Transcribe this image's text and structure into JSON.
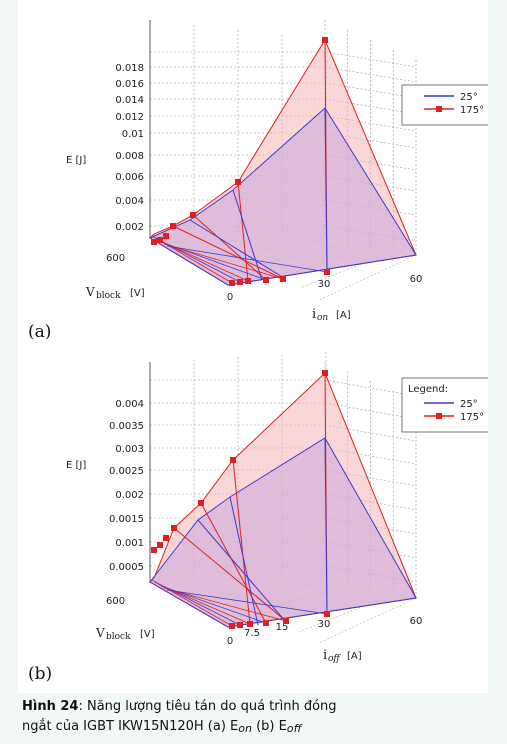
{
  "chart_data": [
    {
      "type": "surface3d",
      "panel_label": "(a)",
      "zlabel": "E [J]",
      "z_ticks": [
        "0.002",
        "0.004",
        "0.006",
        "0.008",
        "0.01",
        "0.012",
        "0.014",
        "0.016",
        "0.018"
      ],
      "current_axis_label": "i",
      "current_axis_sub": "on",
      "current_axis_unit": "[A]",
      "current_ticks": [
        "0",
        "30",
        "60"
      ],
      "voltage_axis_label": "V",
      "voltage_axis_sub": "block",
      "voltage_axis_unit": "[V]",
      "voltage_ticks": [
        "600"
      ],
      "series": [
        {
          "name": "25°",
          "color": "#3a3ad0",
          "peak_E": 0.0125,
          "mid_E": 0.0052
        },
        {
          "name": "175°",
          "color": "#e02020",
          "peak_E": 0.019,
          "mid_E": 0.0065
        }
      ],
      "legend": {
        "title": "",
        "placement": "top-right"
      }
    },
    {
      "type": "surface3d",
      "panel_label": "(b)",
      "zlabel": "E [J]",
      "z_ticks": [
        "0.0005",
        "0.001",
        "0.0015",
        "0.002",
        "0.0025",
        "0.003",
        "0.0035",
        "0.004"
      ],
      "current_axis_label": "i",
      "current_axis_sub": "off",
      "current_axis_unit": "[A]",
      "current_ticks": [
        "0",
        "7.5",
        "15",
        "30",
        "60"
      ],
      "voltage_axis_label": "V",
      "voltage_axis_sub": "block",
      "voltage_axis_unit": "[V]",
      "voltage_ticks": [
        "600"
      ],
      "series": [
        {
          "name": "25°",
          "color": "#3a3ad0",
          "peak_E": 0.0027,
          "mid_E": 0.0015
        },
        {
          "name": "175°",
          "color": "#e02020",
          "peak_E": 0.0042,
          "mid_E": 0.002
        }
      ],
      "legend": {
        "title": "Legend:",
        "placement": "top-right"
      }
    }
  ],
  "caption": {
    "label": "Hình 24",
    "text_line1": ": Năng lượng tiêu tán do quá trình đóng",
    "text_line2": "ngắt của IGBT IKW15N120H (a) E",
    "sub_on": "on",
    "text_mid": " (b) E",
    "sub_off": "off"
  }
}
